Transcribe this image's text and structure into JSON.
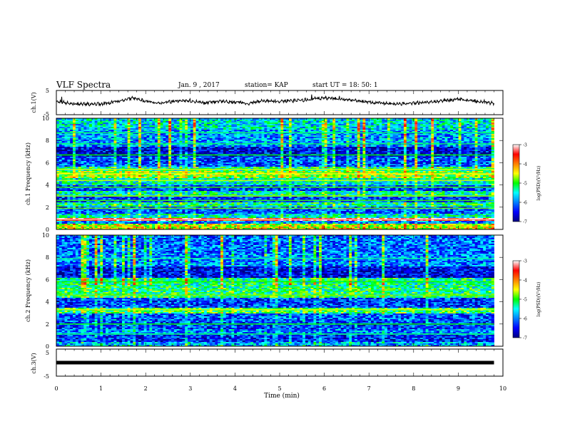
{
  "header": {
    "title": "VLF Spectra",
    "date": "Jan. 9 , 2017",
    "station": "station= KAP",
    "start_time": "start UT = 18: 50: 1"
  },
  "chart_data": [
    {
      "type": "line",
      "name": "ch1-waveform",
      "ylabel": "ch.1(V)",
      "ylim": [
        -5,
        5
      ],
      "yticks": [
        "5",
        "-5"
      ],
      "xlim": [
        0,
        10
      ],
      "x_end": 9.8,
      "trend": [
        {
          "x": 0.0,
          "y": 0.6
        },
        {
          "x": 0.4,
          "y": -0.6
        },
        {
          "x": 1.0,
          "y": -0.6
        },
        {
          "x": 1.4,
          "y": 0.5
        },
        {
          "x": 1.7,
          "y": 1.8
        },
        {
          "x": 2.0,
          "y": 0.6
        },
        {
          "x": 2.3,
          "y": -0.2
        },
        {
          "x": 2.7,
          "y": 0.7
        },
        {
          "x": 3.0,
          "y": 0.6
        },
        {
          "x": 3.3,
          "y": -0.2
        },
        {
          "x": 3.7,
          "y": 0.5
        },
        {
          "x": 4.0,
          "y": 0.3
        },
        {
          "x": 4.3,
          "y": -0.3
        },
        {
          "x": 4.6,
          "y": 0.7
        },
        {
          "x": 5.0,
          "y": 0.5
        },
        {
          "x": 5.5,
          "y": 1.0
        },
        {
          "x": 6.0,
          "y": 1.9
        },
        {
          "x": 6.5,
          "y": 1.2
        },
        {
          "x": 7.0,
          "y": 0.2
        },
        {
          "x": 7.5,
          "y": -0.6
        },
        {
          "x": 8.0,
          "y": -0.3
        },
        {
          "x": 8.5,
          "y": 0.5
        },
        {
          "x": 9.0,
          "y": 1.3
        },
        {
          "x": 9.4,
          "y": 0.6
        },
        {
          "x": 9.8,
          "y": -0.3
        }
      ]
    },
    {
      "type": "heatmap",
      "name": "ch1-spectrogram",
      "ylabel": "ch.1 Frequency (kHz)",
      "ylim": [
        0,
        10
      ],
      "yticks": [
        "0",
        "2",
        "4",
        "6",
        "8",
        "10"
      ],
      "xlim": [
        0,
        10
      ],
      "x_end": 9.8,
      "colorbar": {
        "label": "log(PSD)(V²/Hz)",
        "range": [
          -7,
          -3
        ],
        "ticks": [
          "-3",
          "-4",
          "-5",
          "-6",
          "-7"
        ]
      },
      "bands": [
        {
          "from": 0.0,
          "to": 0.3,
          "level": -4.5
        },
        {
          "from": 0.3,
          "to": 0.55,
          "level": -4.6
        },
        {
          "from": 0.55,
          "to": 0.75,
          "level": -6.0
        },
        {
          "from": 0.75,
          "to": 1.0,
          "level": -3.5
        },
        {
          "from": 1.0,
          "to": 1.4,
          "level": -5.5
        },
        {
          "from": 1.4,
          "to": 2.0,
          "level": -6.2
        },
        {
          "from": 2.0,
          "to": 2.4,
          "level": -5.3
        },
        {
          "from": 2.4,
          "to": 3.0,
          "level": -6.3
        },
        {
          "from": 3.0,
          "to": 3.4,
          "level": -5.4
        },
        {
          "from": 3.4,
          "to": 4.0,
          "level": -6.3
        },
        {
          "from": 4.0,
          "to": 4.6,
          "level": -5.5
        },
        {
          "from": 4.6,
          "to": 5.2,
          "level": -4.8
        },
        {
          "from": 5.2,
          "to": 5.6,
          "level": -5.3
        },
        {
          "from": 5.6,
          "to": 6.6,
          "level": -6.2
        },
        {
          "from": 6.6,
          "to": 7.5,
          "level": -6.6
        },
        {
          "from": 7.5,
          "to": 9.0,
          "level": -5.9
        },
        {
          "from": 9.0,
          "to": 10.0,
          "level": -5.6
        }
      ],
      "lines": [
        {
          "f": 0.9,
          "level": -3.2
        },
        {
          "f": 1.9,
          "level": -4.8
        },
        {
          "f": 2.6,
          "level": -4.9
        },
        {
          "f": 3.0,
          "level": -4.7
        },
        {
          "f": 3.8,
          "level": -4.9
        },
        {
          "f": 4.4,
          "level": -4.6
        },
        {
          "f": 5.0,
          "level": -4.5
        },
        {
          "f": 5.4,
          "level": -4.6
        },
        {
          "f": 6.7,
          "level": -5.0
        },
        {
          "f": 7.7,
          "level": -5.2
        },
        {
          "f": 8.7,
          "level": -5.2
        }
      ]
    },
    {
      "type": "heatmap",
      "name": "ch2-spectrogram",
      "ylabel": "ch.2 Frequency (kHz)",
      "ylim": [
        0,
        10
      ],
      "yticks": [
        "0",
        "2",
        "4",
        "6",
        "8",
        "10"
      ],
      "xlim": [
        0,
        10
      ],
      "x_end": 9.8,
      "colorbar": {
        "label": "log(PSD)(V²/Hz)",
        "range": [
          -7,
          -3
        ],
        "ticks": [
          "-3",
          "-4",
          "-5",
          "-6",
          "-7"
        ]
      },
      "bands": [
        {
          "from": 0.0,
          "to": 0.4,
          "level": -5.8
        },
        {
          "from": 0.4,
          "to": 1.0,
          "level": -6.4
        },
        {
          "from": 1.0,
          "to": 1.5,
          "level": -6.0
        },
        {
          "from": 1.5,
          "to": 2.2,
          "level": -6.3
        },
        {
          "from": 2.2,
          "to": 3.0,
          "level": -6.2
        },
        {
          "from": 3.0,
          "to": 3.5,
          "level": -5.1
        },
        {
          "from": 3.5,
          "to": 4.3,
          "level": -6.3
        },
        {
          "from": 4.3,
          "to": 5.2,
          "level": -5.2
        },
        {
          "from": 5.2,
          "to": 6.2,
          "level": -5.3
        },
        {
          "from": 6.2,
          "to": 7.2,
          "level": -6.6
        },
        {
          "from": 7.2,
          "to": 8.3,
          "level": -6.0
        },
        {
          "from": 8.3,
          "to": 10.0,
          "level": -6.1
        }
      ],
      "lines": [
        {
          "f": 1.1,
          "level": -5.2
        },
        {
          "f": 2.0,
          "level": -5.0
        },
        {
          "f": 3.3,
          "level": -4.6
        },
        {
          "f": 4.6,
          "level": -4.8
        },
        {
          "f": 5.8,
          "level": -5.0
        },
        {
          "f": 7.9,
          "level": -5.3
        }
      ]
    },
    {
      "type": "line",
      "name": "ch3-waveform",
      "ylabel": "ch.3(V)",
      "ylim": [
        -5,
        5
      ],
      "yticks": [
        "5",
        "-5"
      ],
      "xlim": [
        0,
        10
      ],
      "x_end": 9.8,
      "constant_value": 0,
      "xlabel": "Time (min)",
      "xticks": [
        "0",
        "1",
        "2",
        "3",
        "4",
        "5",
        "6",
        "7",
        "8",
        "9",
        "10"
      ]
    }
  ]
}
